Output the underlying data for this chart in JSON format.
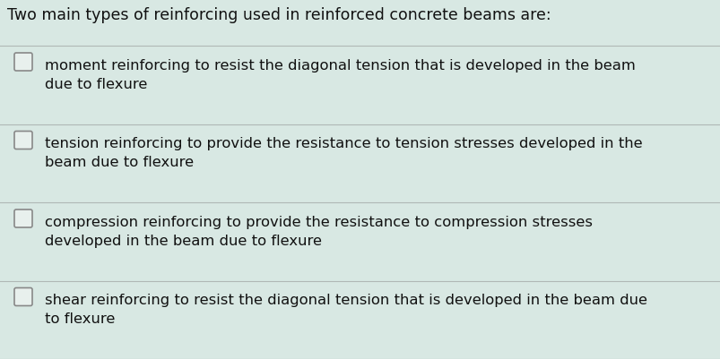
{
  "title": "Two main types of reinforcing used in reinforced concrete beams are:",
  "title_fontsize": 12.5,
  "title_color": "#111111",
  "bg_color": "#d8e8e3",
  "line_color": "#b0b8b5",
  "text_color": "#111111",
  "checkbox_color": "#888888",
  "checkbox_facecolor": "#e8f0ed",
  "item_fontsize": 11.8,
  "items": [
    {
      "line1": "moment reinforcing to resist the diagonal tension that is developed in the beam",
      "line2": "due to flexure"
    },
    {
      "line1": "tension reinforcing to provide the resistance to tension stresses developed in the",
      "line2": "beam due to flexure"
    },
    {
      "line1": "compression reinforcing to provide the resistance to compression stresses",
      "line2": "developed in the beam due to flexure"
    },
    {
      "line1": "shear reinforcing to resist the diagonal tension that is developed in the beam due",
      "line2": "to flexure"
    }
  ]
}
